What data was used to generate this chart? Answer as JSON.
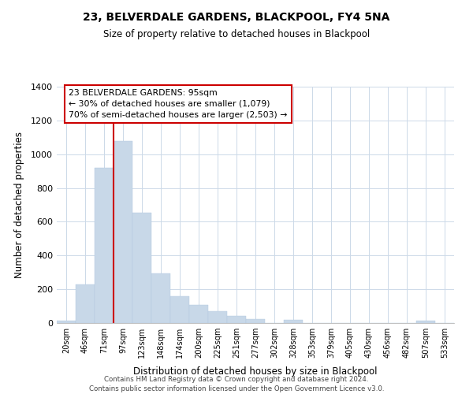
{
  "title": "23, BELVERDALE GARDENS, BLACKPOOL, FY4 5NA",
  "subtitle": "Size of property relative to detached houses in Blackpool",
  "xlabel": "Distribution of detached houses by size in Blackpool",
  "ylabel": "Number of detached properties",
  "bar_color": "#c8d8e8",
  "bar_edge_color": "#b0c8e0",
  "categories": [
    "20sqm",
    "46sqm",
    "71sqm",
    "97sqm",
    "123sqm",
    "148sqm",
    "174sqm",
    "200sqm",
    "225sqm",
    "251sqm",
    "277sqm",
    "302sqm",
    "328sqm",
    "353sqm",
    "379sqm",
    "405sqm",
    "430sqm",
    "456sqm",
    "482sqm",
    "507sqm",
    "533sqm"
  ],
  "values": [
    15,
    230,
    920,
    1080,
    655,
    293,
    160,
    108,
    72,
    40,
    23,
    0,
    20,
    0,
    0,
    0,
    0,
    0,
    0,
    12,
    0
  ],
  "ylim": [
    0,
    1400
  ],
  "yticks": [
    0,
    200,
    400,
    600,
    800,
    1000,
    1200,
    1400
  ],
  "vline_index": 3,
  "vline_color": "#cc0000",
  "annotation_title": "23 BELVERDALE GARDENS: 95sqm",
  "annotation_line1": "← 30% of detached houses are smaller (1,079)",
  "annotation_line2": "70% of semi-detached houses are larger (2,503) →",
  "annotation_box_color": "#ffffff",
  "annotation_box_edge": "#cc0000",
  "footer1": "Contains HM Land Registry data © Crown copyright and database right 2024.",
  "footer2": "Contains public sector information licensed under the Open Government Licence v3.0.",
  "background_color": "#ffffff",
  "grid_color": "#ccd9e8"
}
